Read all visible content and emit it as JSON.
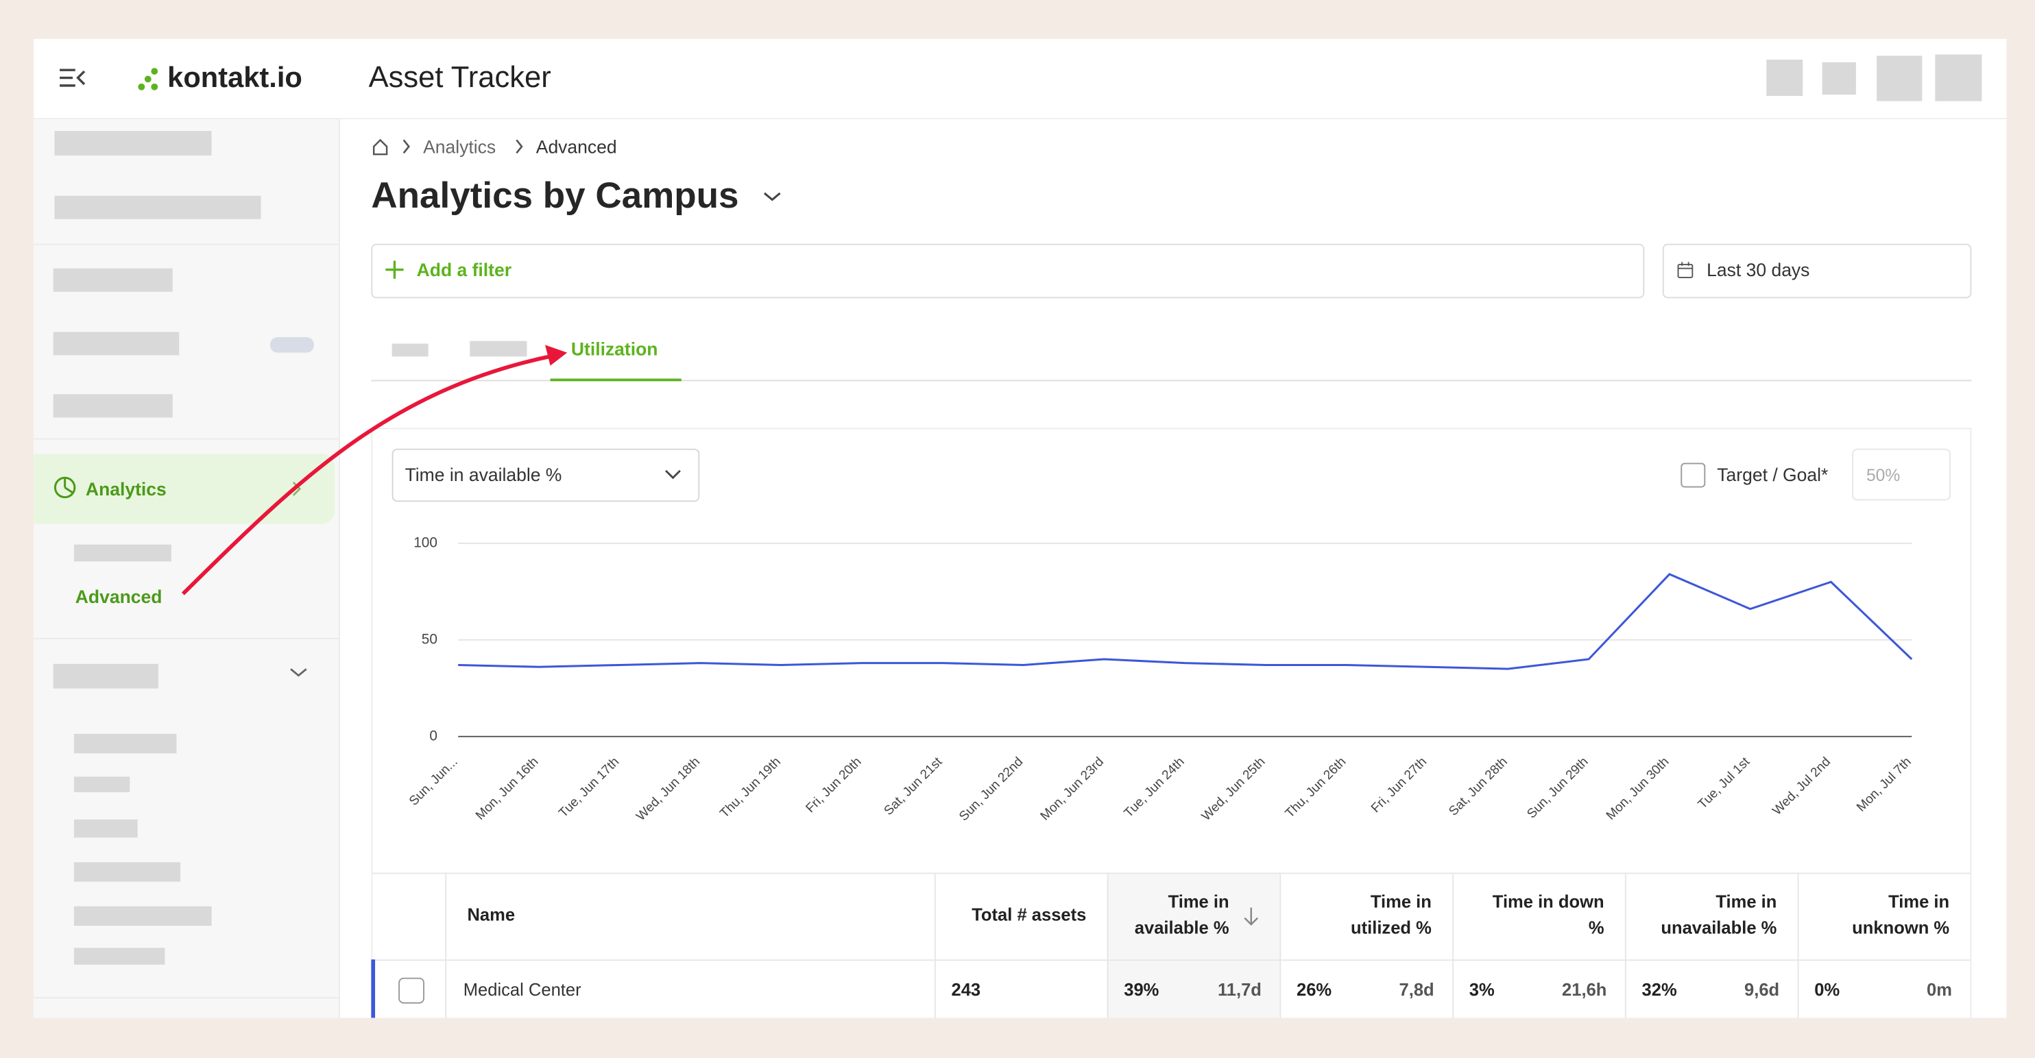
{
  "header": {
    "logo": "kontakt.io",
    "app_title": "Asset Tracker"
  },
  "sidebar": {
    "active_section": "Analytics",
    "active_item": "Advanced"
  },
  "breadcrumb": [
    "Analytics",
    "Advanced"
  ],
  "page_title": "Analytics by Campus",
  "filter": {
    "add": "Add a filter",
    "date_range": "Last 30 days"
  },
  "tabs": {
    "active": "Utilization"
  },
  "chart_controls": {
    "metric": "Time in available %",
    "target_label": "Target / Goal*",
    "target_placeholder": "50%"
  },
  "chart": {
    "type": "line",
    "color": "#3d57d8",
    "grid": true,
    "categories": [
      "Sun, Jun...",
      "Mon, Jun 16th",
      "Tue, Jun 17th",
      "Wed, Jun 18th",
      "Thu, Jun 19th",
      "Fri, Jun 20th",
      "Sat, Jun 21st",
      "Sun, Jun 22nd",
      "Mon, Jun 23rd",
      "Tue, Jun 24th",
      "Wed, Jun 25th",
      "Thu, Jun 26th",
      "Fri, Jun 27th",
      "Sat, Jun 28th",
      "Sun, Jun 29th",
      "Mon, Jun 30th",
      "Tue, Jul 1st",
      "Wed, Jul 2nd",
      "Mon, Jul 7th"
    ],
    "values": [
      37,
      36,
      37,
      38,
      37,
      38,
      38,
      37,
      40,
      38,
      37,
      37,
      36,
      35,
      40,
      84,
      66,
      80,
      40
    ],
    "ylim": [
      0,
      100
    ],
    "yticks": [
      0,
      50,
      100
    ]
  },
  "table": {
    "headers": [
      [
        "Name"
      ],
      [
        "Total # assets"
      ],
      [
        "Time in",
        "available %"
      ],
      [
        "Time in",
        "utilized %"
      ],
      [
        "Time in down",
        "%"
      ],
      [
        "Time in",
        "unavailable %"
      ],
      [
        "Time in",
        "unknown %"
      ]
    ],
    "rows": [
      [
        "Medical Center",
        "243",
        "39%",
        "11,7d",
        "26%",
        "7,8d",
        "3%",
        "21,6h",
        "32%",
        "9,6d",
        "0%",
        "0m"
      ]
    ]
  }
}
